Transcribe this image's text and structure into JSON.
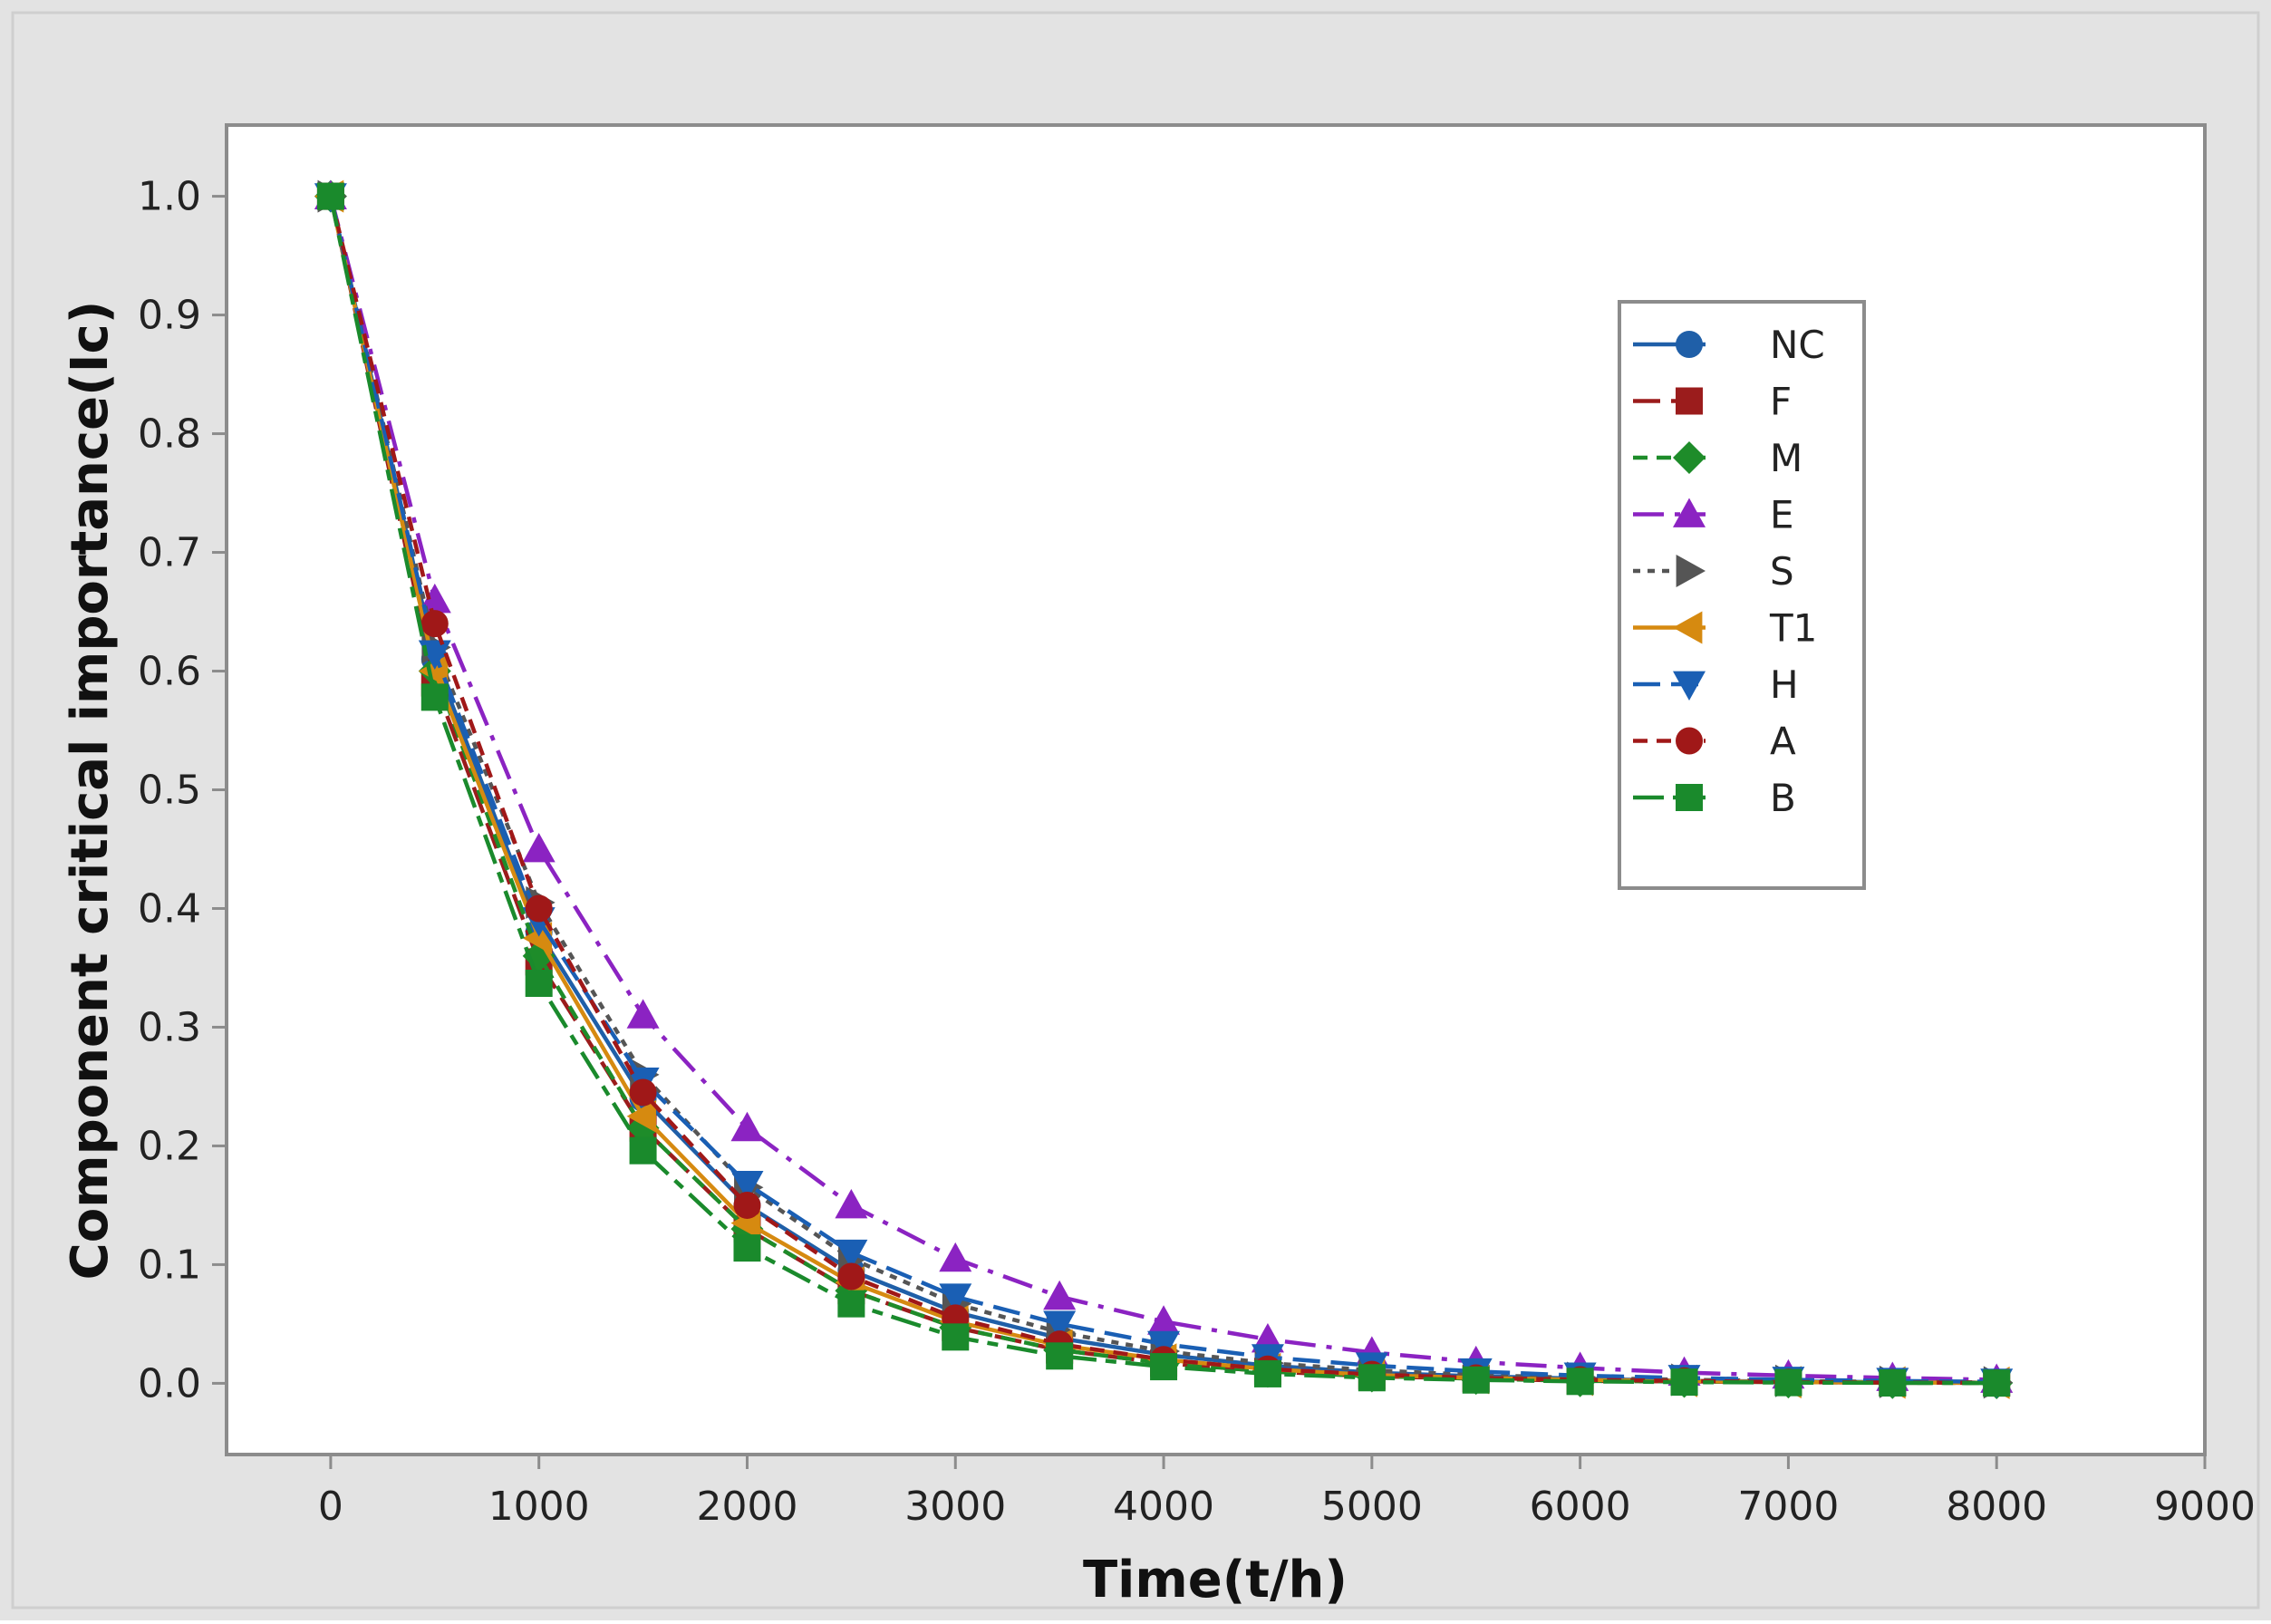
{
  "chart_data": {
    "type": "line",
    "title": "",
    "xlabel": "Time(t/h)",
    "ylabel": "Component critical importance(Ic)",
    "xlim": [
      -500,
      9000
    ],
    "ylim": [
      -0.06,
      1.06
    ],
    "xticks": [
      0,
      1000,
      2000,
      3000,
      4000,
      5000,
      6000,
      7000,
      8000,
      9000
    ],
    "xtick_labels": [
      "0",
      "1000",
      "2000",
      "3000",
      "4000",
      "5000",
      "6000",
      "7000",
      "8000",
      "9000"
    ],
    "yticks": [
      0.0,
      0.1,
      0.2,
      0.3,
      0.4,
      0.5,
      0.6,
      0.7,
      0.8,
      0.9,
      1.0
    ],
    "ytick_labels": [
      "0.0",
      "0.1",
      "0.2",
      "0.3",
      "0.4",
      "0.5",
      "0.6",
      "0.7",
      "0.8",
      "0.9",
      "1.0"
    ],
    "grid": false,
    "legend_position": "top-right",
    "x": [
      0,
      500,
      1000,
      1500,
      2000,
      2500,
      3000,
      3500,
      4000,
      4500,
      5000,
      5500,
      6000,
      6500,
      7000,
      7500,
      8000
    ],
    "series": [
      {
        "name": "NC",
        "color": "#1f5fa8",
        "marker": "circle",
        "dash": "solid",
        "values": [
          1.0,
          0.61,
          0.38,
          0.24,
          0.15,
          0.095,
          0.06,
          0.038,
          0.024,
          0.015,
          0.009,
          0.006,
          0.004,
          0.002,
          0.0015,
          0.001,
          0.0005
        ]
      },
      {
        "name": "F",
        "color": "#9b1c1c",
        "marker": "square",
        "dash": "long",
        "values": [
          1.0,
          0.59,
          0.355,
          0.215,
          0.13,
          0.078,
          0.047,
          0.028,
          0.017,
          0.01,
          0.006,
          0.004,
          0.002,
          0.0015,
          0.001,
          0.0005,
          0.0003
        ]
      },
      {
        "name": "M",
        "color": "#1e8c2a",
        "marker": "diamond",
        "dash": "dash",
        "values": [
          1.0,
          0.6,
          0.36,
          0.215,
          0.13,
          0.078,
          0.047,
          0.028,
          0.017,
          0.01,
          0.006,
          0.004,
          0.002,
          0.0015,
          0.001,
          0.0005,
          0.0003
        ]
      },
      {
        "name": "E",
        "color": "#8b23c2",
        "marker": "triangle-up",
        "dash": "dashdot",
        "values": [
          1.0,
          0.66,
          0.45,
          0.31,
          0.215,
          0.15,
          0.105,
          0.073,
          0.052,
          0.037,
          0.026,
          0.018,
          0.013,
          0.009,
          0.0065,
          0.0045,
          0.003
        ]
      },
      {
        "name": "S",
        "color": "#555555",
        "marker": "triangle-right",
        "dash": "dot",
        "values": [
          1.0,
          0.62,
          0.405,
          0.26,
          0.165,
          0.105,
          0.067,
          0.043,
          0.027,
          0.017,
          0.011,
          0.007,
          0.0045,
          0.003,
          0.002,
          0.0012,
          0.0008
        ]
      },
      {
        "name": "T1",
        "color": "#d68a10",
        "marker": "triangle-left",
        "dash": "solid",
        "values": [
          1.0,
          0.6,
          0.375,
          0.225,
          0.135,
          0.085,
          0.052,
          0.032,
          0.02,
          0.012,
          0.007,
          0.0045,
          0.003,
          0.002,
          0.001,
          0.0007,
          0.0004
        ]
      },
      {
        "name": "H",
        "color": "#1a5fb4",
        "marker": "triangle-down",
        "dash": "long",
        "values": [
          1.0,
          0.615,
          0.39,
          0.255,
          0.168,
          0.11,
          0.073,
          0.05,
          0.033,
          0.022,
          0.015,
          0.01,
          0.0065,
          0.0045,
          0.003,
          0.002,
          0.0013
        ]
      },
      {
        "name": "A",
        "color": "#a01818",
        "marker": "circle",
        "dash": "dash",
        "values": [
          1.0,
          0.64,
          0.4,
          0.245,
          0.15,
          0.09,
          0.055,
          0.033,
          0.02,
          0.012,
          0.0075,
          0.0045,
          0.003,
          0.002,
          0.001,
          0.0007,
          0.0004
        ]
      },
      {
        "name": "B",
        "color": "#1a8a2c",
        "marker": "square",
        "dash": "longshort",
        "values": [
          1.0,
          0.578,
          0.337,
          0.196,
          0.114,
          0.067,
          0.039,
          0.023,
          0.014,
          0.008,
          0.0047,
          0.0028,
          0.0016,
          0.001,
          0.0006,
          0.0003,
          0.0002
        ]
      }
    ]
  }
}
